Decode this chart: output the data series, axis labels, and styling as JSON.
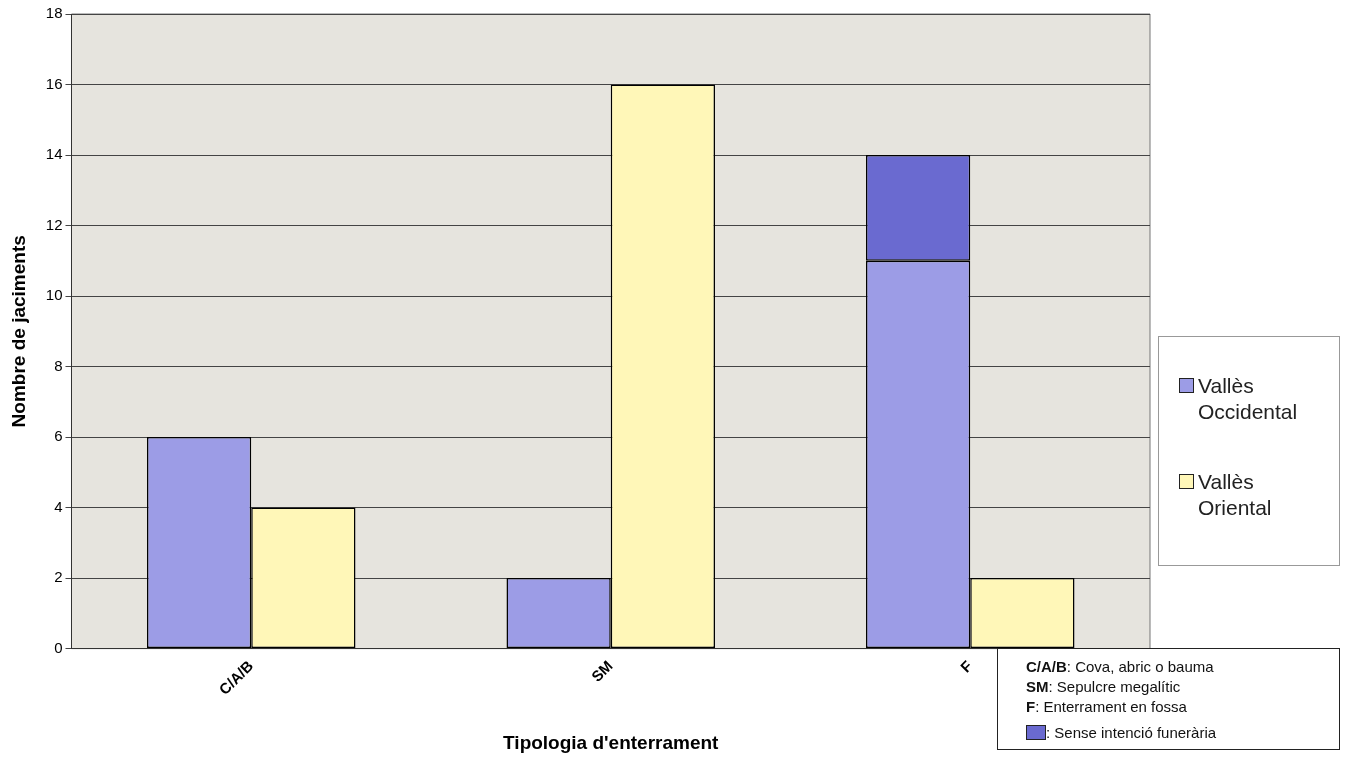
{
  "chart_data": {
    "type": "bar",
    "xlabel": "Tipologia d'enterrament",
    "ylabel": "Nombre de jaciments",
    "categories": [
      "C/A/B",
      "SM",
      "F"
    ],
    "series": [
      {
        "name": "Vallès Occidental",
        "color": "#9c9ce6",
        "values": [
          6,
          2,
          11
        ]
      },
      {
        "name": ": Sense intenció funerària",
        "color": "#6a6ad0",
        "values": [
          null,
          null,
          3
        ],
        "base": [
          null,
          null,
          11
        ]
      },
      {
        "name": "Vallès Oriental",
        "color": "#fff7b8",
        "values": [
          4,
          16,
          2
        ]
      }
    ],
    "ylim": [
      0,
      18
    ],
    "yticks": [
      0,
      2,
      4,
      6,
      8,
      10,
      12,
      14,
      16,
      18
    ],
    "grid": "y",
    "legend": "right",
    "annotations": [
      "C/A/B: Cova, abric o bauma",
      "SM: Sepulcre megalític",
      "F: Enterrament en fossa"
    ]
  }
}
